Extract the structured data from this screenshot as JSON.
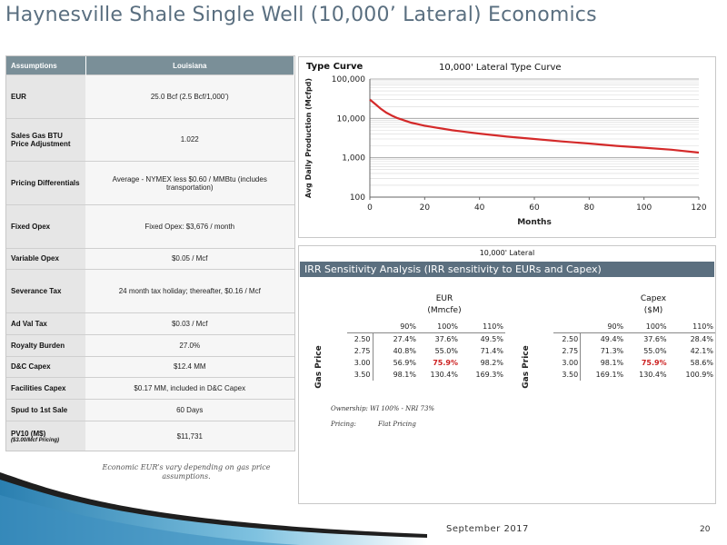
{
  "title": "Haynesville Shale Single Well (10,000’ Lateral) Economics",
  "assumptions": {
    "headers": [
      "Assumptions",
      "Louisiana"
    ],
    "rows": [
      {
        "label": "EUR",
        "value": "25.0 Bcf (2.5 Bcf/1,000’)"
      },
      {
        "label": "Sales Gas BTU Price Adjustment",
        "value": "1.022"
      },
      {
        "label": "Pricing Differentials",
        "value": "Average - NYMEX less $0.60 / MMBtu (includes transportation)"
      },
      {
        "label": "Fixed Opex",
        "value": "Fixed Opex:      $3,676 / month"
      },
      {
        "label": "Variable Opex",
        "value": "$0.05 / Mcf"
      },
      {
        "label": "Severance Tax",
        "value": "24 month tax holiday; thereafter, $0.16 / Mcf"
      },
      {
        "label": "Ad Val Tax",
        "value": "$0.03 / Mcf"
      },
      {
        "label": "Royalty Burden",
        "value": "27.0%"
      },
      {
        "label": "D&C Capex",
        "value": "$12.4 MM"
      },
      {
        "label": "Facilities Capex",
        "value": "$0.17 MM, included in D&C Capex"
      },
      {
        "label": "Spud to 1st Sale",
        "value": "60 Days"
      },
      {
        "label": "PV10 (M$)",
        "sublabel": "($3.00/Mcf Pricing)",
        "value": "$11,731"
      }
    ]
  },
  "economic_note": "Economic EUR’s vary depending on gas price assumptions.",
  "type_curve": {
    "panel_label": "Type Curve",
    "chart_data": {
      "type": "line",
      "title": "10,000' Lateral Type Curve",
      "xlabel": "Months",
      "ylabel": "Avg Daily Production (Mcfpd)",
      "xlim": [
        0,
        120
      ],
      "ylim": [
        100,
        100000
      ],
      "yscale": "log",
      "x_ticks": [
        "0",
        "20",
        "40",
        "60",
        "80",
        "100",
        "120"
      ],
      "y_ticks": [
        "100",
        "1,000",
        "10,000",
        "100,000"
      ],
      "grid": true,
      "color": "#d42a2a",
      "series": [
        {
          "x": [
            0,
            2,
            4,
            6,
            8,
            10,
            15,
            20,
            30,
            40,
            50,
            60,
            70,
            80,
            90,
            100,
            110,
            120
          ],
          "values": [
            30000,
            23000,
            17500,
            14000,
            11800,
            10200,
            7800,
            6500,
            5000,
            4100,
            3450,
            3000,
            2600,
            2300,
            2000,
            1800,
            1600,
            1350
          ]
        }
      ]
    }
  },
  "irr": {
    "top_label": "10,000' Lateral",
    "bar_title": "IRR Sensitivity Analysis (IRR sensitivity to EURs and Capex)",
    "row_axis_label": "Gas Price",
    "highlight_color": "#cc1f1f",
    "eur": {
      "header_line1": "EUR",
      "header_line2": "(Mmcfe)",
      "cols": [
        "90%",
        "100%",
        "110%"
      ],
      "rows": [
        {
          "price": "2.50",
          "vals": [
            "27.4%",
            "37.6%",
            "49.5%"
          ]
        },
        {
          "price": "2.75",
          "vals": [
            "40.8%",
            "55.0%",
            "71.4%"
          ]
        },
        {
          "price": "3.00",
          "vals": [
            "56.9%",
            "75.9%",
            "98.2%"
          ]
        },
        {
          "price": "3.50",
          "vals": [
            "98.1%",
            "130.4%",
            "169.3%"
          ]
        }
      ]
    },
    "capex": {
      "header_line1": "Capex",
      "header_line2": "($M)",
      "cols": [
        "90%",
        "100%",
        "110%"
      ],
      "rows": [
        {
          "price": "2.50",
          "vals": [
            "49.4%",
            "37.6%",
            "28.4%"
          ]
        },
        {
          "price": "2.75",
          "vals": [
            "71.3%",
            "55.0%",
            "42.1%"
          ]
        },
        {
          "price": "3.00",
          "vals": [
            "98.1%",
            "75.9%",
            "58.6%"
          ]
        },
        {
          "price": "3.50",
          "vals": [
            "169.1%",
            "130.4%",
            "100.9%"
          ]
        }
      ]
    },
    "ownership": "Ownership: WI 100% - NRI 73%",
    "pricing_label": "Pricing:",
    "pricing_value": "Flat Pricing"
  },
  "footer": {
    "date": "September 2017",
    "page": "20"
  }
}
